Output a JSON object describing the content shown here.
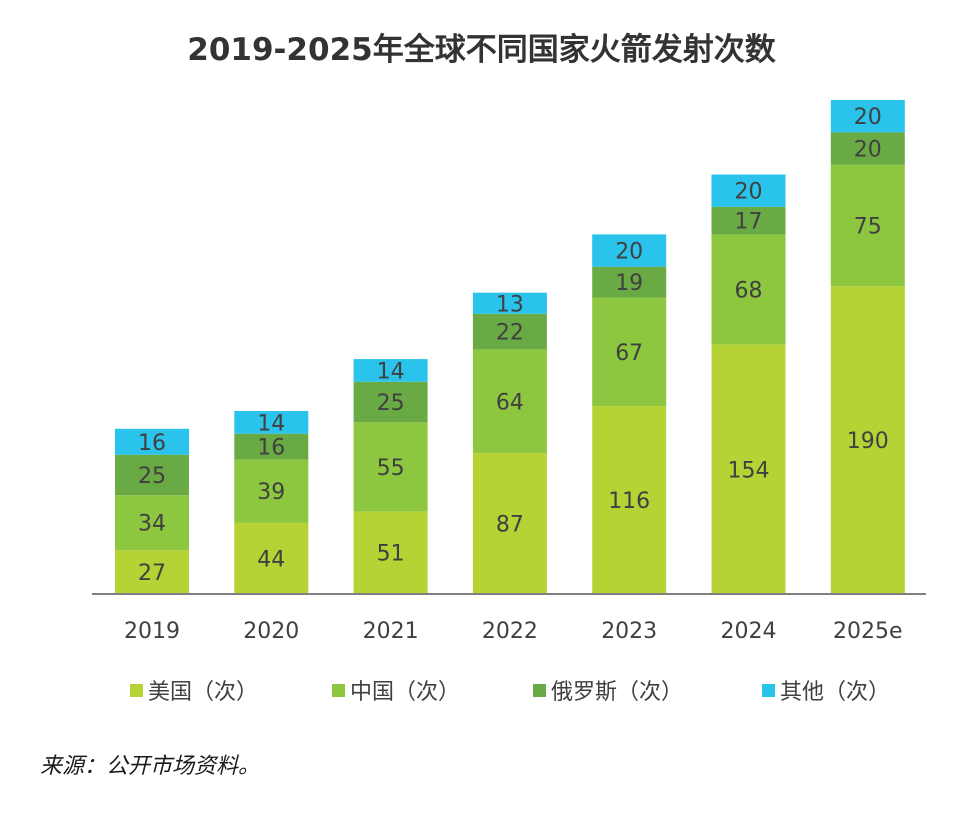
{
  "chart_data": {
    "type": "bar",
    "stacked": true,
    "title": "2019-2025年全球不同国家火箭发射次数",
    "categories": [
      "2019",
      "2020",
      "2021",
      "2022",
      "2023",
      "2024",
      "2025e"
    ],
    "series": [
      {
        "name": "美国（次）",
        "color": "#b5d334",
        "values": [
          27,
          44,
          51,
          87,
          116,
          154,
          190
        ]
      },
      {
        "name": "中国（次）",
        "color": "#8dc63f",
        "values": [
          34,
          39,
          55,
          64,
          67,
          68,
          75
        ]
      },
      {
        "name": "俄罗斯（次）",
        "color": "#6aaa45",
        "values": [
          25,
          16,
          25,
          22,
          19,
          17,
          20
        ]
      },
      {
        "name": "其他（次）",
        "color": "#29c3ec",
        "values": [
          16,
          14,
          14,
          13,
          20,
          20,
          20
        ]
      }
    ],
    "ylim": [
      0,
      305
    ],
    "xlabel": "",
    "ylabel": "",
    "grid": false,
    "legend_position": "bottom"
  },
  "source": "来源：公开市场资料。"
}
